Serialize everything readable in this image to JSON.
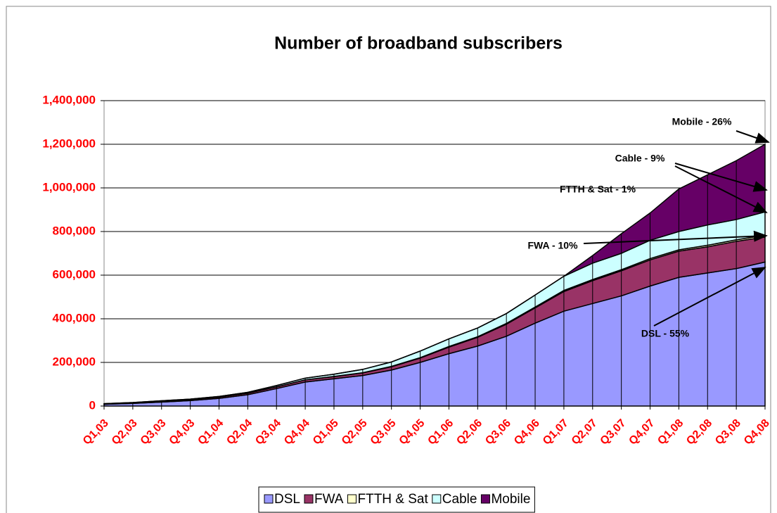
{
  "chart_data": {
    "type": "stacked_area",
    "title": "Number of broadband subscribers",
    "categories": [
      "Q1,03",
      "Q2,03",
      "Q3,03",
      "Q4,03",
      "Q1,04",
      "Q2,04",
      "Q3,04",
      "Q4,04",
      "Q1,05",
      "Q2,05",
      "Q3,05",
      "Q4,05",
      "Q1,06",
      "Q2,06",
      "Q3,06",
      "Q4,06",
      "Q1,07",
      "Q2,07",
      "Q3,07",
      "Q4,07",
      "Q1,08",
      "Q2,08",
      "Q3,08",
      "Q4,08"
    ],
    "series": [
      {
        "name": "DSL",
        "color": "#9999ff",
        "values": [
          8000,
          12000,
          18000,
          25000,
          35000,
          52000,
          80000,
          110000,
          125000,
          140000,
          165000,
          200000,
          240000,
          275000,
          320000,
          380000,
          435000,
          470000,
          505000,
          550000,
          590000,
          610000,
          630000,
          660000
        ]
      },
      {
        "name": "FWA",
        "color": "#993366",
        "values": [
          2000,
          3000,
          4000,
          5000,
          6000,
          7000,
          8000,
          10000,
          10000,
          12000,
          15000,
          20000,
          30000,
          40000,
          55000,
          70000,
          90000,
          105000,
          115000,
          120000,
          120000,
          120000,
          125000,
          115000
        ]
      },
      {
        "name": "FTTH & Sat",
        "color": "#ffffcc",
        "values": [
          0,
          0,
          0,
          0,
          0,
          0,
          0,
          0,
          1000,
          1000,
          2000,
          2000,
          3000,
          3000,
          4000,
          4000,
          5000,
          5000,
          5000,
          6000,
          6000,
          7000,
          7000,
          8000
        ]
      },
      {
        "name": "Cable",
        "color": "#ccffff",
        "values": [
          1000,
          1000,
          2000,
          2000,
          3000,
          4000,
          6000,
          8000,
          10000,
          15000,
          20000,
          30000,
          35000,
          40000,
          45000,
          55000,
          65000,
          75000,
          75000,
          84000,
          84000,
          93000,
          93000,
          107000
        ]
      },
      {
        "name": "Mobile",
        "color": "#660066",
        "values": [
          0,
          0,
          0,
          0,
          0,
          0,
          0,
          0,
          0,
          0,
          0,
          0,
          0,
          0,
          0,
          0,
          0,
          35000,
          90000,
          125000,
          195000,
          230000,
          270000,
          310000
        ]
      }
    ],
    "ylim": [
      0,
      1400000
    ],
    "yticks": [
      0,
      {
        "value": 200000,
        "label": "200,000"
      },
      {
        "value": 400000,
        "label": "400,000"
      },
      {
        "value": 600000,
        "label": "600,000"
      },
      {
        "value": 800000,
        "label": "800,000"
      },
      {
        "value": 1000000,
        "label": "1,000,000"
      },
      {
        "value": 1200000,
        "label": "1,200,000"
      },
      {
        "value": 1400000,
        "label": "1,400,000"
      }
    ],
    "grid": true,
    "legend": "bottom",
    "annotations": [
      "Mobile - 26%",
      "Cable - 9%",
      "FTTH & Sat - 1%",
      "FWA  - 10%",
      "DSL - 55%"
    ]
  }
}
